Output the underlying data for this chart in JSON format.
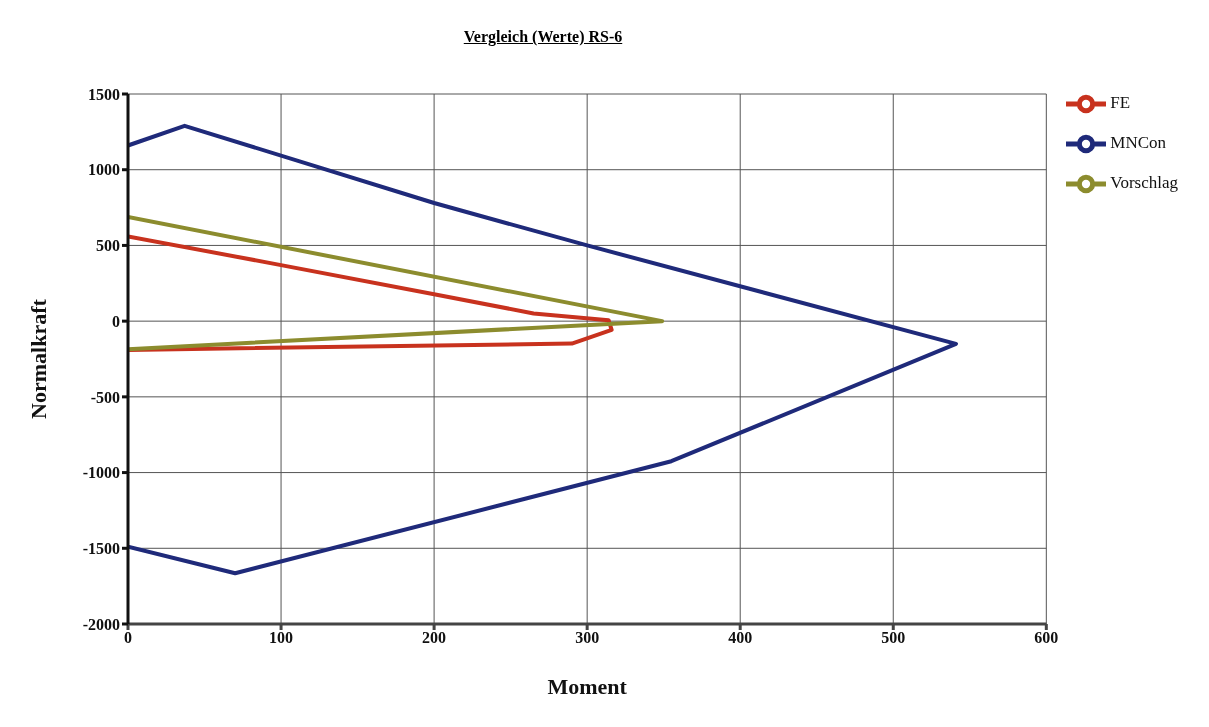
{
  "chart_data": {
    "type": "line",
    "title": "Vergleich (Werte) RS-6",
    "xlabel": "Moment",
    "ylabel": "Normalkraft",
    "xlim": [
      0,
      600
    ],
    "xticks": [
      0,
      100,
      200,
      300,
      400,
      500,
      600
    ],
    "ylim": [
      -2000,
      1500
    ],
    "yticks": [
      -2000,
      -1500,
      -1000,
      -500,
      0,
      500,
      1000,
      1500
    ],
    "grid": true,
    "legend": "top right",
    "marker": "none",
    "line_style": "solid",
    "series": [
      {
        "name": "MNCon",
        "color": "#1f2a7a",
        "x": [
          0,
          37,
          200,
          300,
          541,
          355,
          70,
          0
        ],
        "values": [
          1160,
          1290,
          780,
          500,
          -150,
          -925,
          -1665,
          -1490
        ]
      },
      {
        "name": "FE",
        "color": "#c8321e",
        "x": [
          0,
          100,
          200,
          265,
          314,
          316,
          290,
          0
        ],
        "values": [
          560,
          370,
          178,
          51,
          6,
          -57,
          -148,
          -190
        ]
      },
      {
        "name": "Vorschlag",
        "color": "#8c8c2e",
        "x": [
          0,
          349,
          0
        ],
        "values": [
          688,
          0,
          -185
        ]
      }
    ]
  }
}
